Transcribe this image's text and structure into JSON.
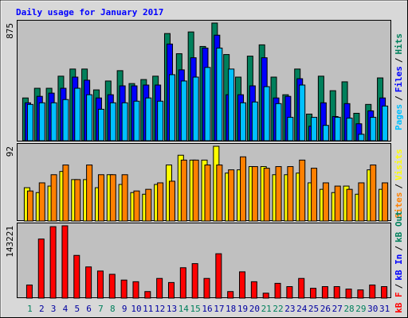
{
  "chart_data": [
    {
      "type": "bar",
      "title": "Daily usage for January 2017",
      "ylim": [
        0,
        875
      ],
      "yticks": [
        875
      ],
      "legend_separator": "/",
      "series": [
        {
          "name": "Pages",
          "color": "#00c0ff",
          "values": [
            270,
            282,
            282,
            306,
            390,
            342,
            234,
            282,
            282,
            294,
            318,
            294,
            491,
            444,
            473,
            545,
            689,
            533,
            282,
            288,
            402,
            276,
            174,
            414,
            174,
            114,
            174,
            168,
            48,
            174,
            258
          ]
        },
        {
          "name": "Files",
          "color": "#0000ff",
          "values": [
            282,
            330,
            354,
            390,
            473,
            450,
            318,
            342,
            408,
            408,
            414,
            414,
            719,
            527,
            617,
            689,
            785,
            342,
            342,
            408,
            617,
            318,
            330,
            461,
            108,
            282,
            180,
            276,
            126,
            222,
            318
          ]
        },
        {
          "name": "Hits",
          "color": "#00805c",
          "values": [
            318,
            390,
            390,
            480,
            533,
            533,
            378,
            444,
            521,
            425,
            455,
            480,
            797,
            647,
            809,
            701,
            875,
            641,
            473,
            629,
            713,
            473,
            342,
            533,
            198,
            480,
            372,
            438,
            204,
            270,
            467
          ]
        }
      ]
    },
    {
      "type": "bar",
      "ylim": [
        0,
        92
      ],
      "yticks": [
        92
      ],
      "legend_separator": "/",
      "series": [
        {
          "name": "Sites",
          "color": "#ff8000",
          "values": [
            37,
            47,
            57,
            69,
            51,
            69,
            57,
            57,
            57,
            37,
            39,
            47,
            49,
            75,
            75,
            69,
            69,
            63,
            79,
            67,
            65,
            67,
            67,
            75,
            65,
            47,
            43,
            39,
            47,
            69,
            47
          ]
        },
        {
          "name": "Visits",
          "color": "#ffff00",
          "values": [
            41,
            35,
            43,
            61,
            51,
            51,
            41,
            57,
            45,
            35,
            33,
            45,
            69,
            81,
            75,
            75,
            92,
            59,
            63,
            67,
            67,
            57,
            57,
            59,
            47,
            39,
            35,
            43,
            33,
            63,
            39
          ]
        }
      ]
    },
    {
      "type": "bar",
      "ylim": [
        0,
        143221
      ],
      "yticks": [
        143221
      ],
      "legend_separator": "/",
      "categories": [
        "1",
        "2",
        "3",
        "4",
        "5",
        "6",
        "7",
        "8",
        "9",
        "10",
        "11",
        "12",
        "13",
        "14",
        "15",
        "16",
        "17",
        "18",
        "19",
        "20",
        "21",
        "22",
        "23",
        "24",
        "25",
        "26",
        "27",
        "28",
        "29",
        "30",
        "31"
      ],
      "category_colors": [
        "#00805c",
        "#0000a0",
        "#0000a0",
        "#0000a0",
        "#0000a0",
        "#0000a0",
        "#00805c",
        "#00805c",
        "#0000a0",
        "#0000a0",
        "#0000a0",
        "#0000a0",
        "#0000a0",
        "#00805c",
        "#00805c",
        "#0000a0",
        "#0000a0",
        "#0000a0",
        "#0000a0",
        "#0000a0",
        "#00805c",
        "#00805c",
        "#0000a0",
        "#0000a0",
        "#0000a0",
        "#0000a0",
        "#0000a0",
        "#00805c",
        "#00805c",
        "#0000a0",
        "#0000a0"
      ],
      "series": [
        {
          "name": "kB F",
          "color": "#ff0000",
          "values": [
            26000,
            117000,
            141500,
            143221,
            84600,
            61800,
            53700,
            47200,
            35800,
            32500,
            13000,
            39000,
            30900,
            60200,
            68300,
            39000,
            87900,
            13000,
            52100,
            32500,
            9800,
            29300,
            22800,
            39000,
            19500,
            22800,
            22800,
            17900,
            16300,
            26000,
            22800
          ]
        },
        {
          "name": "kB In",
          "color": "#0000ff",
          "values": [
            null,
            null,
            null,
            null,
            null,
            null,
            null,
            null,
            null,
            null,
            null,
            null,
            null,
            null,
            null,
            null,
            null,
            null,
            null,
            null,
            null,
            null,
            null,
            null,
            null,
            null,
            null,
            null,
            null,
            null,
            null
          ]
        },
        {
          "name": "kB Out",
          "color": "#00805c",
          "values": [
            null,
            null,
            null,
            null,
            null,
            null,
            null,
            null,
            null,
            null,
            null,
            null,
            null,
            null,
            null,
            null,
            null,
            null,
            null,
            null,
            null,
            null,
            null,
            null,
            null,
            null,
            null,
            null,
            null,
            null,
            null
          ]
        }
      ]
    }
  ]
}
